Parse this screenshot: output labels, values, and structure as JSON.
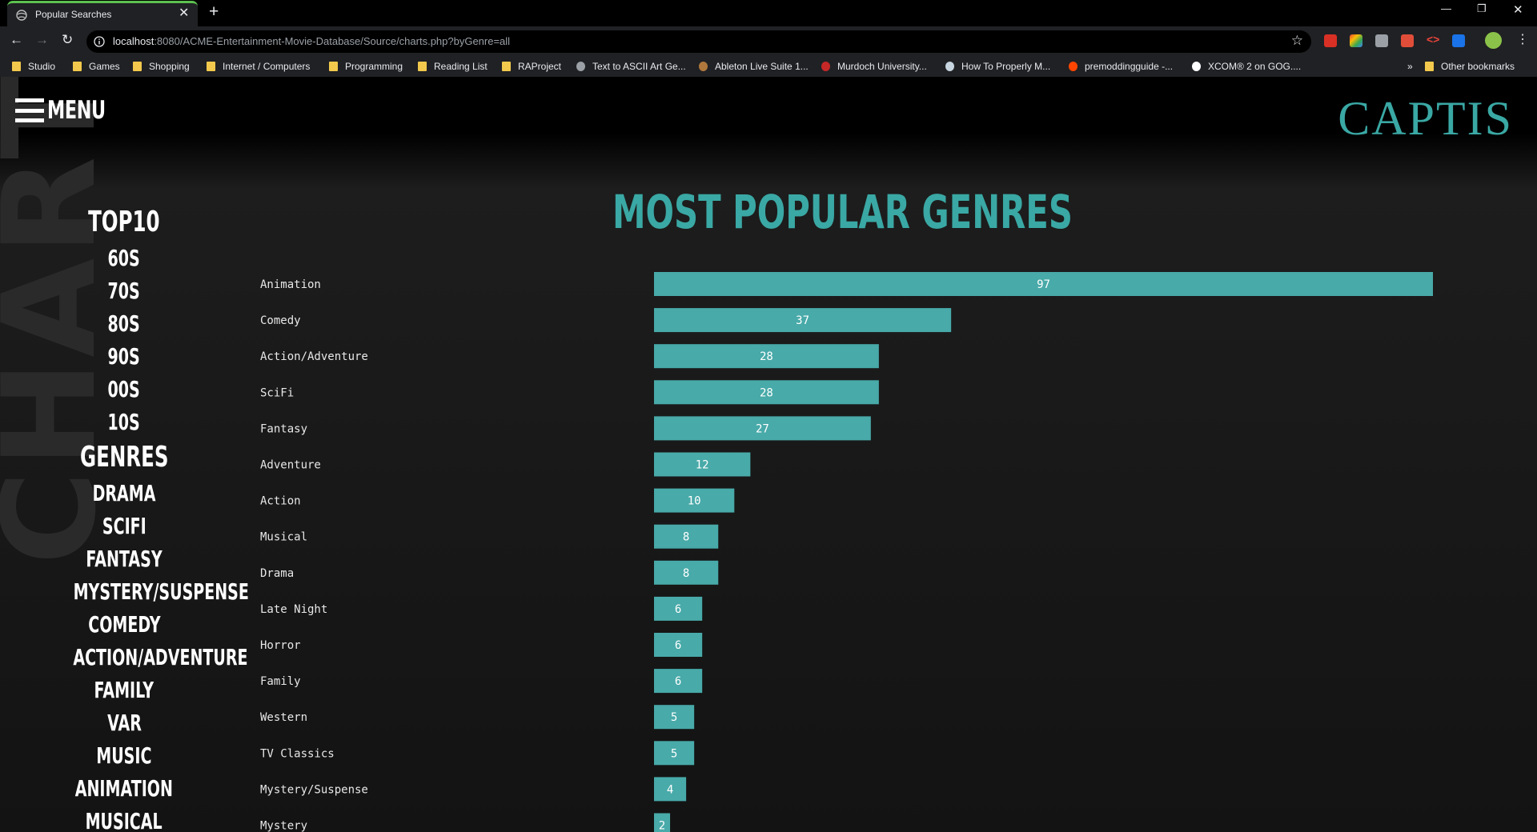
{
  "browser": {
    "tab_title": "Popular Searches",
    "url_host": "localhost",
    "url_rest": ":8080/ACME-Entertainment-Movie-Database/Source/charts.php?byGenre=all",
    "bookmarks": [
      {
        "label": "Studio",
        "icon": "folder-icon"
      },
      {
        "label": "Games",
        "icon": "folder-icon"
      },
      {
        "label": "Shopping",
        "icon": "folder-icon"
      },
      {
        "label": "Internet / Computers",
        "icon": "folder-icon"
      },
      {
        "label": "Programming",
        "icon": "folder-icon"
      },
      {
        "label": "Reading List",
        "icon": "folder-icon"
      },
      {
        "label": "RAProject",
        "icon": "folder-icon"
      },
      {
        "label": "Text to ASCII Art Ge...",
        "icon": "globe-icon"
      },
      {
        "label": "Ableton Live Suite 1...",
        "icon": "site-icon"
      },
      {
        "label": "Murdoch University...",
        "icon": "university-icon"
      },
      {
        "label": "How To Properly M...",
        "icon": "steam-icon"
      },
      {
        "label": "premoddingguide -...",
        "icon": "reddit-icon"
      },
      {
        "label": "XCOM® 2 on GOG....",
        "icon": "gog-icon"
      }
    ],
    "other_bookmarks": "Other bookmarks",
    "overflow": "»"
  },
  "header": {
    "menu_label": "MENU",
    "logo": "CAPTIS"
  },
  "watermark": "CHARTS",
  "sidenav": [
    {
      "label": "TOP10",
      "size": "big"
    },
    {
      "label": "60S",
      "size": "small"
    },
    {
      "label": "70S",
      "size": "small"
    },
    {
      "label": "80S",
      "size": "small"
    },
    {
      "label": "90S",
      "size": "small"
    },
    {
      "label": "00S",
      "size": "small"
    },
    {
      "label": "10S",
      "size": "small"
    },
    {
      "label": "GENRES",
      "size": "big"
    },
    {
      "label": "DRAMA",
      "size": "small"
    },
    {
      "label": "SCIFI",
      "size": "small"
    },
    {
      "label": "FANTASY",
      "size": "small"
    },
    {
      "label": "MYSTERY/SUSPENSE",
      "size": "small"
    },
    {
      "label": "COMEDY",
      "size": "small"
    },
    {
      "label": "ACTION/ADVENTURE",
      "size": "small"
    },
    {
      "label": "FAMILY",
      "size": "small"
    },
    {
      "label": "VAR",
      "size": "small"
    },
    {
      "label": "MUSIC",
      "size": "small"
    },
    {
      "label": "ANIMATION",
      "size": "small"
    },
    {
      "label": "MUSICAL",
      "size": "small"
    }
  ],
  "colors": {
    "accent": "#3aa8a4",
    "bar": "#48aaa9"
  },
  "chart_data": {
    "type": "bar",
    "orientation": "horizontal",
    "title": "MOST POPULAR GENRES",
    "categories": [
      "Animation",
      "Comedy",
      "Action/Adventure",
      "SciFi",
      "Fantasy",
      "Adventure",
      "Action",
      "Musical",
      "Drama",
      "Late Night",
      "Horror",
      "Family",
      "Western",
      "TV Classics",
      "Mystery/Suspense",
      "Mystery"
    ],
    "values": [
      97,
      37,
      28,
      28,
      27,
      12,
      10,
      8,
      8,
      6,
      6,
      6,
      5,
      5,
      4,
      2
    ],
    "xlim": [
      0,
      97
    ],
    "grid": false,
    "data_labels": true
  }
}
